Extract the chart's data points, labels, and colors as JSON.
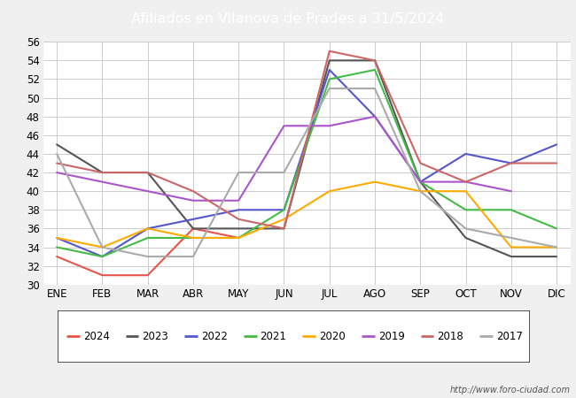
{
  "title": "Afiliados en Vilanova de Prades a 31/5/2024",
  "title_bg_color": "#4472c4",
  "title_text_color": "#ffffff",
  "ylim": [
    30,
    56
  ],
  "yticks": [
    30,
    32,
    34,
    36,
    38,
    40,
    42,
    44,
    46,
    48,
    50,
    52,
    54,
    56
  ],
  "months": [
    "ENE",
    "FEB",
    "MAR",
    "ABR",
    "MAY",
    "JUN",
    "JUL",
    "AGO",
    "SEP",
    "OCT",
    "NOV",
    "DIC"
  ],
  "series": {
    "2024": {
      "color": "#e8534a",
      "data": [
        33,
        31,
        31,
        36,
        35,
        null,
        null,
        null,
        null,
        null,
        null,
        null
      ]
    },
    "2023": {
      "color": "#555555",
      "data": [
        45,
        42,
        42,
        36,
        36,
        36,
        54,
        54,
        41,
        35,
        33,
        33
      ]
    },
    "2022": {
      "color": "#5555cc",
      "data": [
        35,
        33,
        36,
        37,
        38,
        38,
        53,
        48,
        41,
        44,
        43,
        45
      ]
    },
    "2021": {
      "color": "#44bb44",
      "data": [
        34,
        33,
        35,
        35,
        35,
        38,
        52,
        53,
        41,
        38,
        38,
        36
      ]
    },
    "2020": {
      "color": "#ffaa00",
      "data": [
        35,
        34,
        36,
        35,
        35,
        37,
        40,
        41,
        40,
        40,
        34,
        34
      ]
    },
    "2019": {
      "color": "#aa55cc",
      "data": [
        42,
        41,
        40,
        39,
        39,
        47,
        47,
        48,
        41,
        41,
        40,
        null
      ]
    },
    "2018": {
      "color": "#cc6666",
      "data": [
        43,
        42,
        42,
        40,
        37,
        36,
        55,
        54,
        43,
        41,
        43,
        43
      ]
    },
    "2017": {
      "color": "#aaaaaa",
      "data": [
        44,
        34,
        33,
        33,
        42,
        42,
        51,
        51,
        40,
        36,
        35,
        34
      ]
    }
  },
  "legend_order": [
    "2024",
    "2023",
    "2022",
    "2021",
    "2020",
    "2019",
    "2018",
    "2017"
  ],
  "watermark": "http://www.foro-ciudad.com",
  "fig_bg_color": "#f0f0f0",
  "plot_bg_color": "#ffffff",
  "grid_color": "#cccccc"
}
